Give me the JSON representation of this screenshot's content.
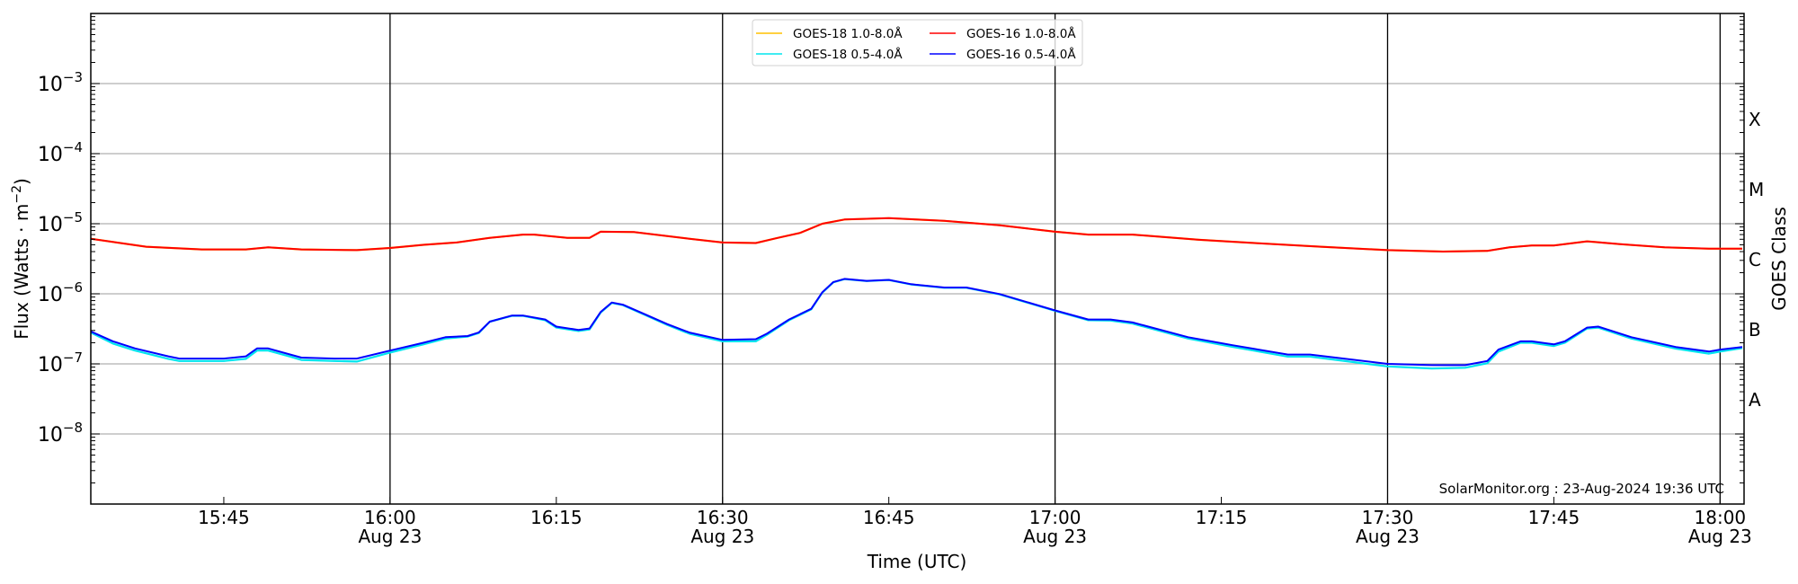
{
  "chart_data": {
    "type": "line",
    "title": "",
    "xlabel": "Time (UTC)",
    "ylabel": "Flux (Watts · m",
    "ylabel_sup": "−2",
    "ylabel_close": ")",
    "right_label": "GOES Class",
    "yscale": "log",
    "ylim": [
      1e-09,
      0.01
    ],
    "xlim": [
      "15:33",
      "18:02"
    ],
    "grid": "horizontal at decades",
    "legend_placement": "top-center",
    "watermark": "SolarMonitor.org : 23-Aug-2024 19:36 UTC",
    "y_ticks": [
      {
        "exp": -8,
        "base": "10",
        "sup": "−8"
      },
      {
        "exp": -7,
        "base": "10",
        "sup": "−7"
      },
      {
        "exp": -6,
        "base": "10",
        "sup": "−6"
      },
      {
        "exp": -5,
        "base": "10",
        "sup": "−5"
      },
      {
        "exp": -4,
        "base": "10",
        "sup": "−4"
      },
      {
        "exp": -3,
        "base": "10",
        "sup": "−3"
      }
    ],
    "x_ticks": [
      {
        "time": "15:45",
        "label": "15:45",
        "date": ""
      },
      {
        "time": "16:00",
        "label": "16:00",
        "date": "Aug 23"
      },
      {
        "time": "16:15",
        "label": "16:15",
        "date": ""
      },
      {
        "time": "16:30",
        "label": "16:30",
        "date": "Aug 23"
      },
      {
        "time": "16:45",
        "label": "16:45",
        "date": ""
      },
      {
        "time": "17:00",
        "label": "17:00",
        "date": "Aug 23"
      },
      {
        "time": "17:15",
        "label": "17:15",
        "date": ""
      },
      {
        "time": "17:30",
        "label": "17:30",
        "date": "Aug 23"
      },
      {
        "time": "17:45",
        "label": "17:45",
        "date": ""
      },
      {
        "time": "18:00",
        "label": "18:00",
        "date": "Aug 23"
      }
    ],
    "vertical_lines": [
      "16:00",
      "16:30",
      "17:00",
      "17:30",
      "18:00"
    ],
    "goes_classes": [
      {
        "label": "A",
        "log_center": -7.5
      },
      {
        "label": "B",
        "log_center": -6.5
      },
      {
        "label": "C",
        "log_center": -5.5
      },
      {
        "label": "M",
        "log_center": -4.5
      },
      {
        "label": "X",
        "log_center": -3.5
      }
    ],
    "series": [
      {
        "name": "GOES-18 1.0-8.0Å",
        "color": "#ffc000",
        "x": [
          "15:33",
          "15:38",
          "15:43",
          "15:47",
          "15:49",
          "15:52",
          "15:57",
          "16:00",
          "16:03",
          "16:06",
          "16:09",
          "16:12",
          "16:13",
          "16:16",
          "16:18",
          "16:19",
          "16:22",
          "16:27",
          "16:30",
          "16:33",
          "16:35",
          "16:37",
          "16:39",
          "16:41",
          "16:45",
          "16:50",
          "16:55",
          "17:00",
          "17:03",
          "17:07",
          "17:13",
          "17:18",
          "17:24",
          "17:30",
          "17:35",
          "17:39",
          "17:41",
          "17:43",
          "17:45",
          "17:48",
          "17:51",
          "17:55",
          "17:59",
          "18:02"
        ],
        "y": [
          6.1e-06,
          4.7e-06,
          4.3e-06,
          4.3e-06,
          4.6e-06,
          4.3e-06,
          4.2e-06,
          4.5e-06,
          5e-06,
          5.4e-06,
          6.3e-06,
          7e-06,
          7e-06,
          6.3e-06,
          6.3e-06,
          7.7e-06,
          7.6e-06,
          6.1e-06,
          5.4e-06,
          5.3e-06,
          6.3e-06,
          7.4e-06,
          1e-05,
          1.15e-05,
          1.2e-05,
          1.1e-05,
          9.5e-06,
          7.7e-06,
          7e-06,
          7e-06,
          5.9e-06,
          5.3e-06,
          4.7e-06,
          4.2e-06,
          4e-06,
          4.1e-06,
          4.6e-06,
          4.9e-06,
          4.9e-06,
          5.6e-06,
          5.1e-06,
          4.6e-06,
          4.4e-06,
          4.4e-06
        ]
      },
      {
        "name": "GOES-16 1.0-8.0Å",
        "color": "#ff0000",
        "x": [
          "15:33",
          "15:38",
          "15:43",
          "15:47",
          "15:49",
          "15:52",
          "15:57",
          "16:00",
          "16:03",
          "16:06",
          "16:09",
          "16:12",
          "16:13",
          "16:16",
          "16:18",
          "16:19",
          "16:22",
          "16:27",
          "16:30",
          "16:33",
          "16:35",
          "16:37",
          "16:39",
          "16:41",
          "16:45",
          "16:50",
          "16:55",
          "17:00",
          "17:03",
          "17:07",
          "17:13",
          "17:18",
          "17:24",
          "17:30",
          "17:35",
          "17:39",
          "17:41",
          "17:43",
          "17:45",
          "17:48",
          "17:51",
          "17:55",
          "17:59",
          "18:02"
        ],
        "y": [
          6.1e-06,
          4.7e-06,
          4.3e-06,
          4.3e-06,
          4.6e-06,
          4.3e-06,
          4.2e-06,
          4.5e-06,
          5e-06,
          5.4e-06,
          6.3e-06,
          7e-06,
          7e-06,
          6.3e-06,
          6.3e-06,
          7.7e-06,
          7.6e-06,
          6.1e-06,
          5.4e-06,
          5.3e-06,
          6.3e-06,
          7.4e-06,
          1e-05,
          1.15e-05,
          1.2e-05,
          1.1e-05,
          9.5e-06,
          7.7e-06,
          7e-06,
          7e-06,
          5.9e-06,
          5.3e-06,
          4.7e-06,
          4.2e-06,
          4e-06,
          4.1e-06,
          4.6e-06,
          4.9e-06,
          4.9e-06,
          5.6e-06,
          5.1e-06,
          4.6e-06,
          4.4e-06,
          4.4e-06
        ]
      },
      {
        "name": "GOES-18 0.5-4.0Å",
        "color": "#00e5ee",
        "x": [
          "15:33",
          "15:35",
          "15:37",
          "15:40",
          "15:41",
          "15:45",
          "15:47",
          "15:48",
          "15:49",
          "15:51",
          "15:52",
          "15:55",
          "15:57",
          "16:00",
          "16:03",
          "16:05",
          "16:07",
          "16:08",
          "16:09",
          "16:11",
          "16:12",
          "16:14",
          "16:15",
          "16:17",
          "16:18",
          "16:19",
          "16:20",
          "16:21",
          "16:23",
          "16:25",
          "16:27",
          "16:30",
          "16:33",
          "16:34",
          "16:36",
          "16:38",
          "16:39",
          "16:40",
          "16:41",
          "16:43",
          "16:45",
          "16:47",
          "16:50",
          "16:52",
          "16:55",
          "17:00",
          "17:03",
          "17:05",
          "17:07",
          "17:12",
          "17:16",
          "17:21",
          "17:23",
          "17:30",
          "17:34",
          "17:37",
          "17:39",
          "17:40",
          "17:42",
          "17:43",
          "17:45",
          "17:46",
          "17:48",
          "17:49",
          "17:52",
          "17:56",
          "17:59",
          "18:00",
          "18:02"
        ],
        "y": [
          2.8e-07,
          1.95e-07,
          1.55e-07,
          1.18e-07,
          1.1e-07,
          1.1e-07,
          1.18e-07,
          1.55e-07,
          1.55e-07,
          1.27e-07,
          1.14e-07,
          1.1e-07,
          1.08e-07,
          1.45e-07,
          1.9e-07,
          2.3e-07,
          2.45e-07,
          2.75e-07,
          4e-07,
          4.85e-07,
          4.85e-07,
          4.2e-07,
          3.3e-07,
          2.95e-07,
          3.1e-07,
          5.4e-07,
          7.4e-07,
          6.9e-07,
          5e-07,
          3.6e-07,
          2.7e-07,
          2.1e-07,
          2.1e-07,
          2.6e-07,
          4.2e-07,
          6e-07,
          1.04e-06,
          1.46e-06,
          1.62e-06,
          1.52e-06,
          1.57e-06,
          1.36e-06,
          1.22e-06,
          1.22e-06,
          9.8e-07,
          5.7e-07,
          4.2e-07,
          4.15e-07,
          3.75e-07,
          2.3e-07,
          1.75e-07,
          1.27e-07,
          1.27e-07,
          9.2e-08,
          8.6e-08,
          8.8e-08,
          1.02e-07,
          1.5e-07,
          2e-07,
          2e-07,
          1.8e-07,
          2e-07,
          3.2e-07,
          3.3e-07,
          2.3e-07,
          1.65e-07,
          1.4e-07,
          1.5e-07,
          1.68e-07
        ]
      },
      {
        "name": "GOES-16 0.5-4.0Å",
        "color": "#0000ff",
        "x": [
          "15:33",
          "15:35",
          "15:37",
          "15:40",
          "15:41",
          "15:45",
          "15:47",
          "15:48",
          "15:49",
          "15:51",
          "15:52",
          "15:55",
          "15:57",
          "16:00",
          "16:03",
          "16:05",
          "16:07",
          "16:08",
          "16:09",
          "16:11",
          "16:12",
          "16:14",
          "16:15",
          "16:17",
          "16:18",
          "16:19",
          "16:20",
          "16:21",
          "16:23",
          "16:25",
          "16:27",
          "16:30",
          "16:33",
          "16:34",
          "16:36",
          "16:38",
          "16:39",
          "16:40",
          "16:41",
          "16:43",
          "16:45",
          "16:47",
          "16:50",
          "16:52",
          "16:55",
          "17:00",
          "17:03",
          "17:05",
          "17:07",
          "17:12",
          "17:16",
          "17:21",
          "17:23",
          "17:30",
          "17:34",
          "17:37",
          "17:39",
          "17:40",
          "17:42",
          "17:43",
          "17:45",
          "17:46",
          "17:48",
          "17:49",
          "17:52",
          "17:56",
          "17:59",
          "18:00",
          "18:02"
        ],
        "y": [
          2.9e-07,
          2.1e-07,
          1.66e-07,
          1.28e-07,
          1.19e-07,
          1.19e-07,
          1.28e-07,
          1.66e-07,
          1.66e-07,
          1.36e-07,
          1.23e-07,
          1.19e-07,
          1.19e-07,
          1.55e-07,
          2e-07,
          2.4e-07,
          2.5e-07,
          2.8e-07,
          4e-07,
          4.9e-07,
          4.9e-07,
          4.3e-07,
          3.4e-07,
          3.05e-07,
          3.2e-07,
          5.5e-07,
          7.5e-07,
          7e-07,
          5.1e-07,
          3.7e-07,
          2.8e-07,
          2.2e-07,
          2.25e-07,
          2.7e-07,
          4.3e-07,
          6.1e-07,
          1.05e-06,
          1.47e-06,
          1.63e-06,
          1.53e-06,
          1.58e-06,
          1.37e-06,
          1.23e-06,
          1.23e-06,
          9.9e-07,
          5.8e-07,
          4.3e-07,
          4.3e-07,
          3.9e-07,
          2.4e-07,
          1.85e-07,
          1.36e-07,
          1.36e-07,
          1e-07,
          9.6e-08,
          9.6e-08,
          1.1e-07,
          1.6e-07,
          2.1e-07,
          2.1e-07,
          1.9e-07,
          2.1e-07,
          3.3e-07,
          3.4e-07,
          2.4e-07,
          1.74e-07,
          1.5e-07,
          1.6e-07,
          1.74e-07
        ]
      }
    ],
    "legend_order": [
      0,
      2,
      1,
      3
    ]
  }
}
